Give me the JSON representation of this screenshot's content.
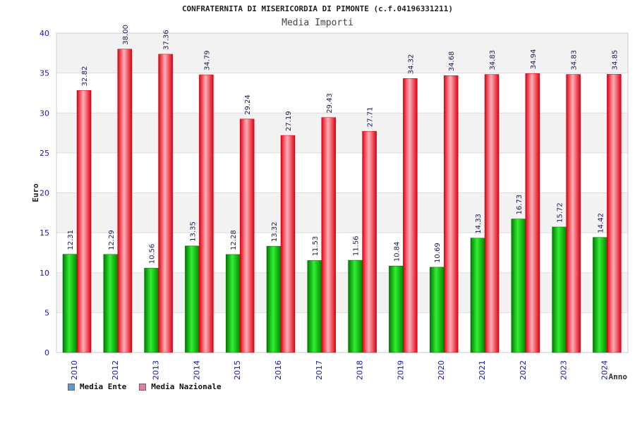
{
  "chart_data": {
    "type": "bar",
    "title": "CONFRATERNITA DI MISERICORDIA DI PIMONTE (c.f.04196331211)",
    "subtitle": "Media Importi",
    "xlabel": "Anno",
    "ylabel": "Euro",
    "ylim": [
      0,
      40
    ],
    "yticks": [
      0,
      5,
      10,
      15,
      20,
      25,
      30,
      35,
      40
    ],
    "categories": [
      "2010",
      "2012",
      "2013",
      "2014",
      "2015",
      "2016",
      "2017",
      "2018",
      "2019",
      "2020",
      "2021",
      "2022",
      "2023",
      "2024"
    ],
    "series": [
      {
        "name": "Media Ente",
        "values": [
          12.31,
          12.29,
          10.56,
          13.35,
          12.28,
          13.32,
          11.53,
          11.56,
          10.84,
          10.69,
          14.33,
          16.73,
          15.72,
          14.42
        ],
        "labels": [
          "12.31",
          "12.29",
          "10.56",
          "13.35",
          "12.28",
          "13.32",
          "11.53",
          "11.56",
          "10.84",
          "10.69",
          "14.33",
          "16.73",
          "15.72",
          "14.42"
        ]
      },
      {
        "name": "Media Nazionale",
        "values": [
          32.82,
          38.0,
          37.36,
          34.79,
          29.24,
          27.19,
          29.43,
          27.71,
          34.32,
          34.68,
          34.83,
          34.94,
          34.83,
          34.85
        ],
        "labels": [
          "32.82",
          "38.00",
          "37.36",
          "34.79",
          "29.24",
          "27.19",
          "29.43",
          "27.71",
          "34.32",
          "34.68",
          "34.83",
          "34.94",
          "34.83",
          "34.85"
        ]
      }
    ],
    "legend": {
      "position": "bottom-left",
      "items": [
        {
          "label": "Media Ente",
          "color": "#5a9bd5"
        },
        {
          "label": "Media Nazionale",
          "color": "#e87ca0"
        }
      ]
    },
    "grid": true
  },
  "colors": {
    "ente_dark": "#007a00",
    "ente_light": "#33ee33",
    "naz_dark": "#e00010",
    "naz_light": "#ffb0b8",
    "band": "#f2f2f2",
    "axis_text": "#1a1aa0"
  }
}
